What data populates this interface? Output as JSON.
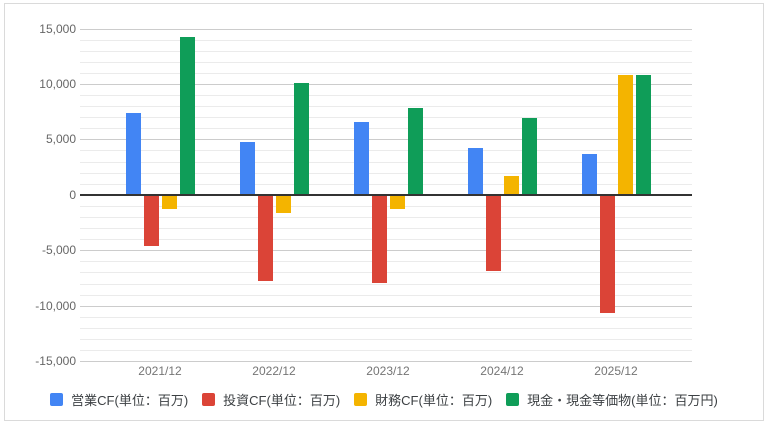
{
  "chart_data": {
    "type": "bar",
    "title": "",
    "xlabel": "",
    "ylabel": "",
    "categories": [
      "2021/12",
      "2022/12",
      "2023/12",
      "2024/12",
      "2025/12"
    ],
    "series": [
      {
        "name": "営業CF(単位：百万)",
        "color": "#4285F4",
        "values": [
          7400,
          4800,
          6600,
          4200,
          3700
        ]
      },
      {
        "name": "投資CF(単位：百万)",
        "color": "#DB4437",
        "values": [
          -4600,
          -7800,
          -8000,
          -6900,
          -10700
        ]
      },
      {
        "name": "財務CF(単位：百万)",
        "color": "#F4B400",
        "values": [
          -1300,
          -1600,
          -1300,
          1700,
          10800
        ]
      },
      {
        "name": "現金・現金等価物(単位：百万円)",
        "color": "#0F9D58",
        "values": [
          14200,
          10100,
          7800,
          6900,
          10800
        ]
      }
    ],
    "ylim": [
      -15000,
      15000
    ],
    "y_major_step": 5000,
    "y_minor_step": 1000,
    "y_tick_values": [
      15000,
      10000,
      5000,
      0,
      -5000,
      -10000,
      -15000
    ],
    "y_tick_labels": [
      "15,000",
      "10,000",
      "5,000",
      "0",
      "-5,000",
      "-10,000",
      "-15,000"
    ],
    "grid": true,
    "legend_position": "bottom"
  },
  "colors": {
    "background": "#ffffff",
    "frame_border": "#dadada",
    "grid_minor": "#ebebeb",
    "grid_major": "#cccccc",
    "zero_line": "#333333",
    "y_axis_text": "#666666",
    "x_axis_text": "#757575",
    "legend_text": "#3c4043"
  }
}
